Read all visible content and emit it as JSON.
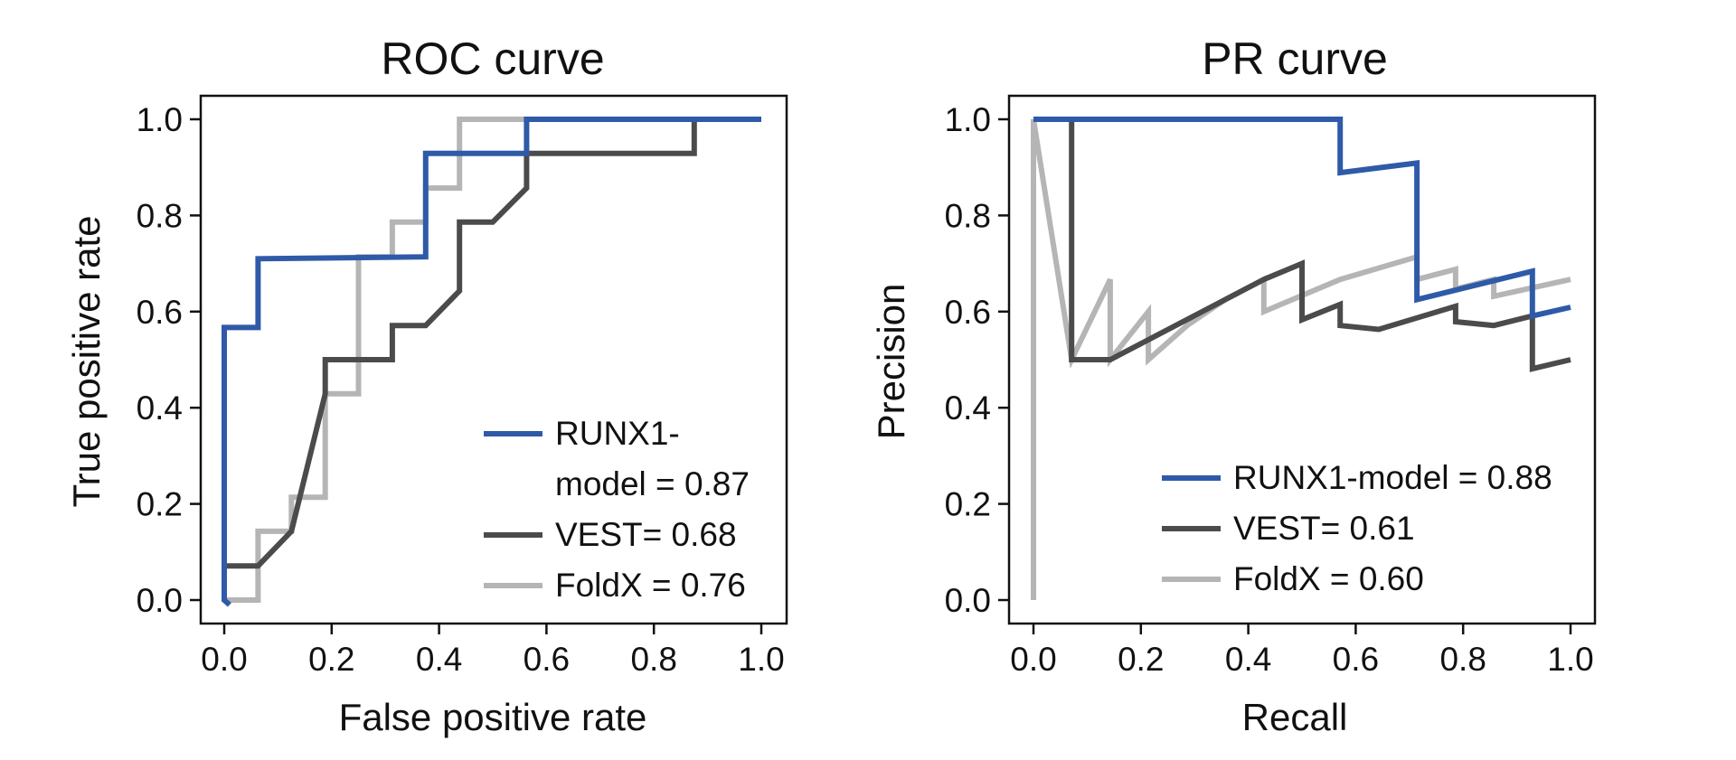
{
  "colors": {
    "RUNX1-model": "#2f5aa8",
    "VEST": "#4b4b4b",
    "FoldX": "#b5b5b5"
  },
  "chart_data": [
    {
      "type": "line",
      "title": "ROC curve",
      "xlabel": "False positive rate",
      "ylabel": "True positive rate",
      "xlim": [
        0,
        1
      ],
      "ylim": [
        0,
        1
      ],
      "xticks": [
        "0.0",
        "0.2",
        "0.4",
        "0.6",
        "0.8",
        "1.0"
      ],
      "yticks": [
        "0.0",
        "0.2",
        "0.4",
        "0.6",
        "0.8",
        "1.0"
      ],
      "grid": false,
      "legend_position": "bottom-right",
      "series": [
        {
          "name": "RUNX1-model",
          "legend_lines": [
            "RUNX1-",
            "model = 0.87"
          ],
          "color_key": "RUNX1-model",
          "x": [
            0.01,
            0.0,
            0.0,
            0.063,
            0.063,
            0.375,
            0.375,
            0.563,
            0.563,
            1.0
          ],
          "y": [
            -0.01,
            0.0,
            0.567,
            0.567,
            0.71,
            0.714,
            0.929,
            0.929,
            1.0,
            1.0
          ]
        },
        {
          "name": "VEST",
          "legend_lines": [
            "VEST= 0.68"
          ],
          "color_key": "VEST",
          "x": [
            0.0,
            0.0,
            0.063,
            0.125,
            0.125,
            0.188,
            0.188,
            0.313,
            0.313,
            0.375,
            0.438,
            0.438,
            0.5,
            0.563,
            0.563,
            0.875,
            0.875,
            1.0
          ],
          "y": [
            0.0,
            0.071,
            0.071,
            0.143,
            0.143,
            0.429,
            0.5,
            0.5,
            0.571,
            0.571,
            0.643,
            0.786,
            0.786,
            0.857,
            0.929,
            0.929,
            1.0,
            1.0
          ]
        },
        {
          "name": "FoldX",
          "legend_lines": [
            "FoldX = 0.76"
          ],
          "color_key": "FoldX",
          "x": [
            0.0,
            0.063,
            0.063,
            0.125,
            0.125,
            0.188,
            0.188,
            0.25,
            0.25,
            0.313,
            0.313,
            0.375,
            0.375,
            0.438,
            0.438,
            1.0
          ],
          "y": [
            0.0,
            0.0,
            0.143,
            0.143,
            0.214,
            0.214,
            0.429,
            0.429,
            0.714,
            0.714,
            0.786,
            0.786,
            0.857,
            0.857,
            1.0,
            1.0
          ]
        }
      ]
    },
    {
      "type": "line",
      "title": "PR curve",
      "xlabel": "Recall",
      "ylabel": "Precision",
      "xlim": [
        0,
        1
      ],
      "ylim": [
        0,
        1
      ],
      "xticks": [
        "0.0",
        "0.2",
        "0.4",
        "0.6",
        "0.8",
        "1.0"
      ],
      "yticks": [
        "0.0",
        "0.2",
        "0.4",
        "0.6",
        "0.8",
        "1.0"
      ],
      "grid": false,
      "legend_position": "bottom-right",
      "series": [
        {
          "name": "RUNX1-model",
          "legend_lines": [
            "RUNX1-model = 0.88"
          ],
          "color_key": "RUNX1-model",
          "x": [
            0.0,
            0.571,
            0.571,
            0.714,
            0.714,
            0.929,
            0.929,
            1.0
          ],
          "y": [
            1.0,
            1.0,
            0.889,
            0.909,
            0.625,
            0.684,
            0.591,
            0.609
          ]
        },
        {
          "name": "VEST",
          "legend_lines": [
            "VEST= 0.61"
          ],
          "color_key": "VEST",
          "x": [
            0.071,
            0.071,
            0.143,
            0.429,
            0.5,
            0.5,
            0.571,
            0.571,
            0.643,
            0.786,
            0.786,
            0.857,
            0.929,
            0.929,
            1.0
          ],
          "y": [
            1.0,
            0.5,
            0.5,
            0.667,
            0.7,
            0.583,
            0.615,
            0.571,
            0.563,
            0.611,
            0.579,
            0.571,
            0.591,
            0.481,
            0.5
          ]
        },
        {
          "name": "FoldX",
          "legend_lines": [
            "FoldX = 0.60"
          ],
          "color_key": "FoldX",
          "x": [
            0.0,
            0.0,
            0.071,
            0.143,
            0.143,
            0.214,
            0.214,
            0.286,
            0.357,
            0.429,
            0.429,
            0.571,
            0.714,
            0.714,
            0.786,
            0.786,
            0.857,
            0.857,
            1.0
          ],
          "y": [
            0.0,
            1.0,
            0.5,
            0.667,
            0.5,
            0.6,
            0.5,
            0.571,
            0.625,
            0.667,
            0.6,
            0.667,
            0.714,
            0.667,
            0.688,
            0.647,
            0.667,
            0.632,
            0.667
          ]
        }
      ]
    }
  ]
}
